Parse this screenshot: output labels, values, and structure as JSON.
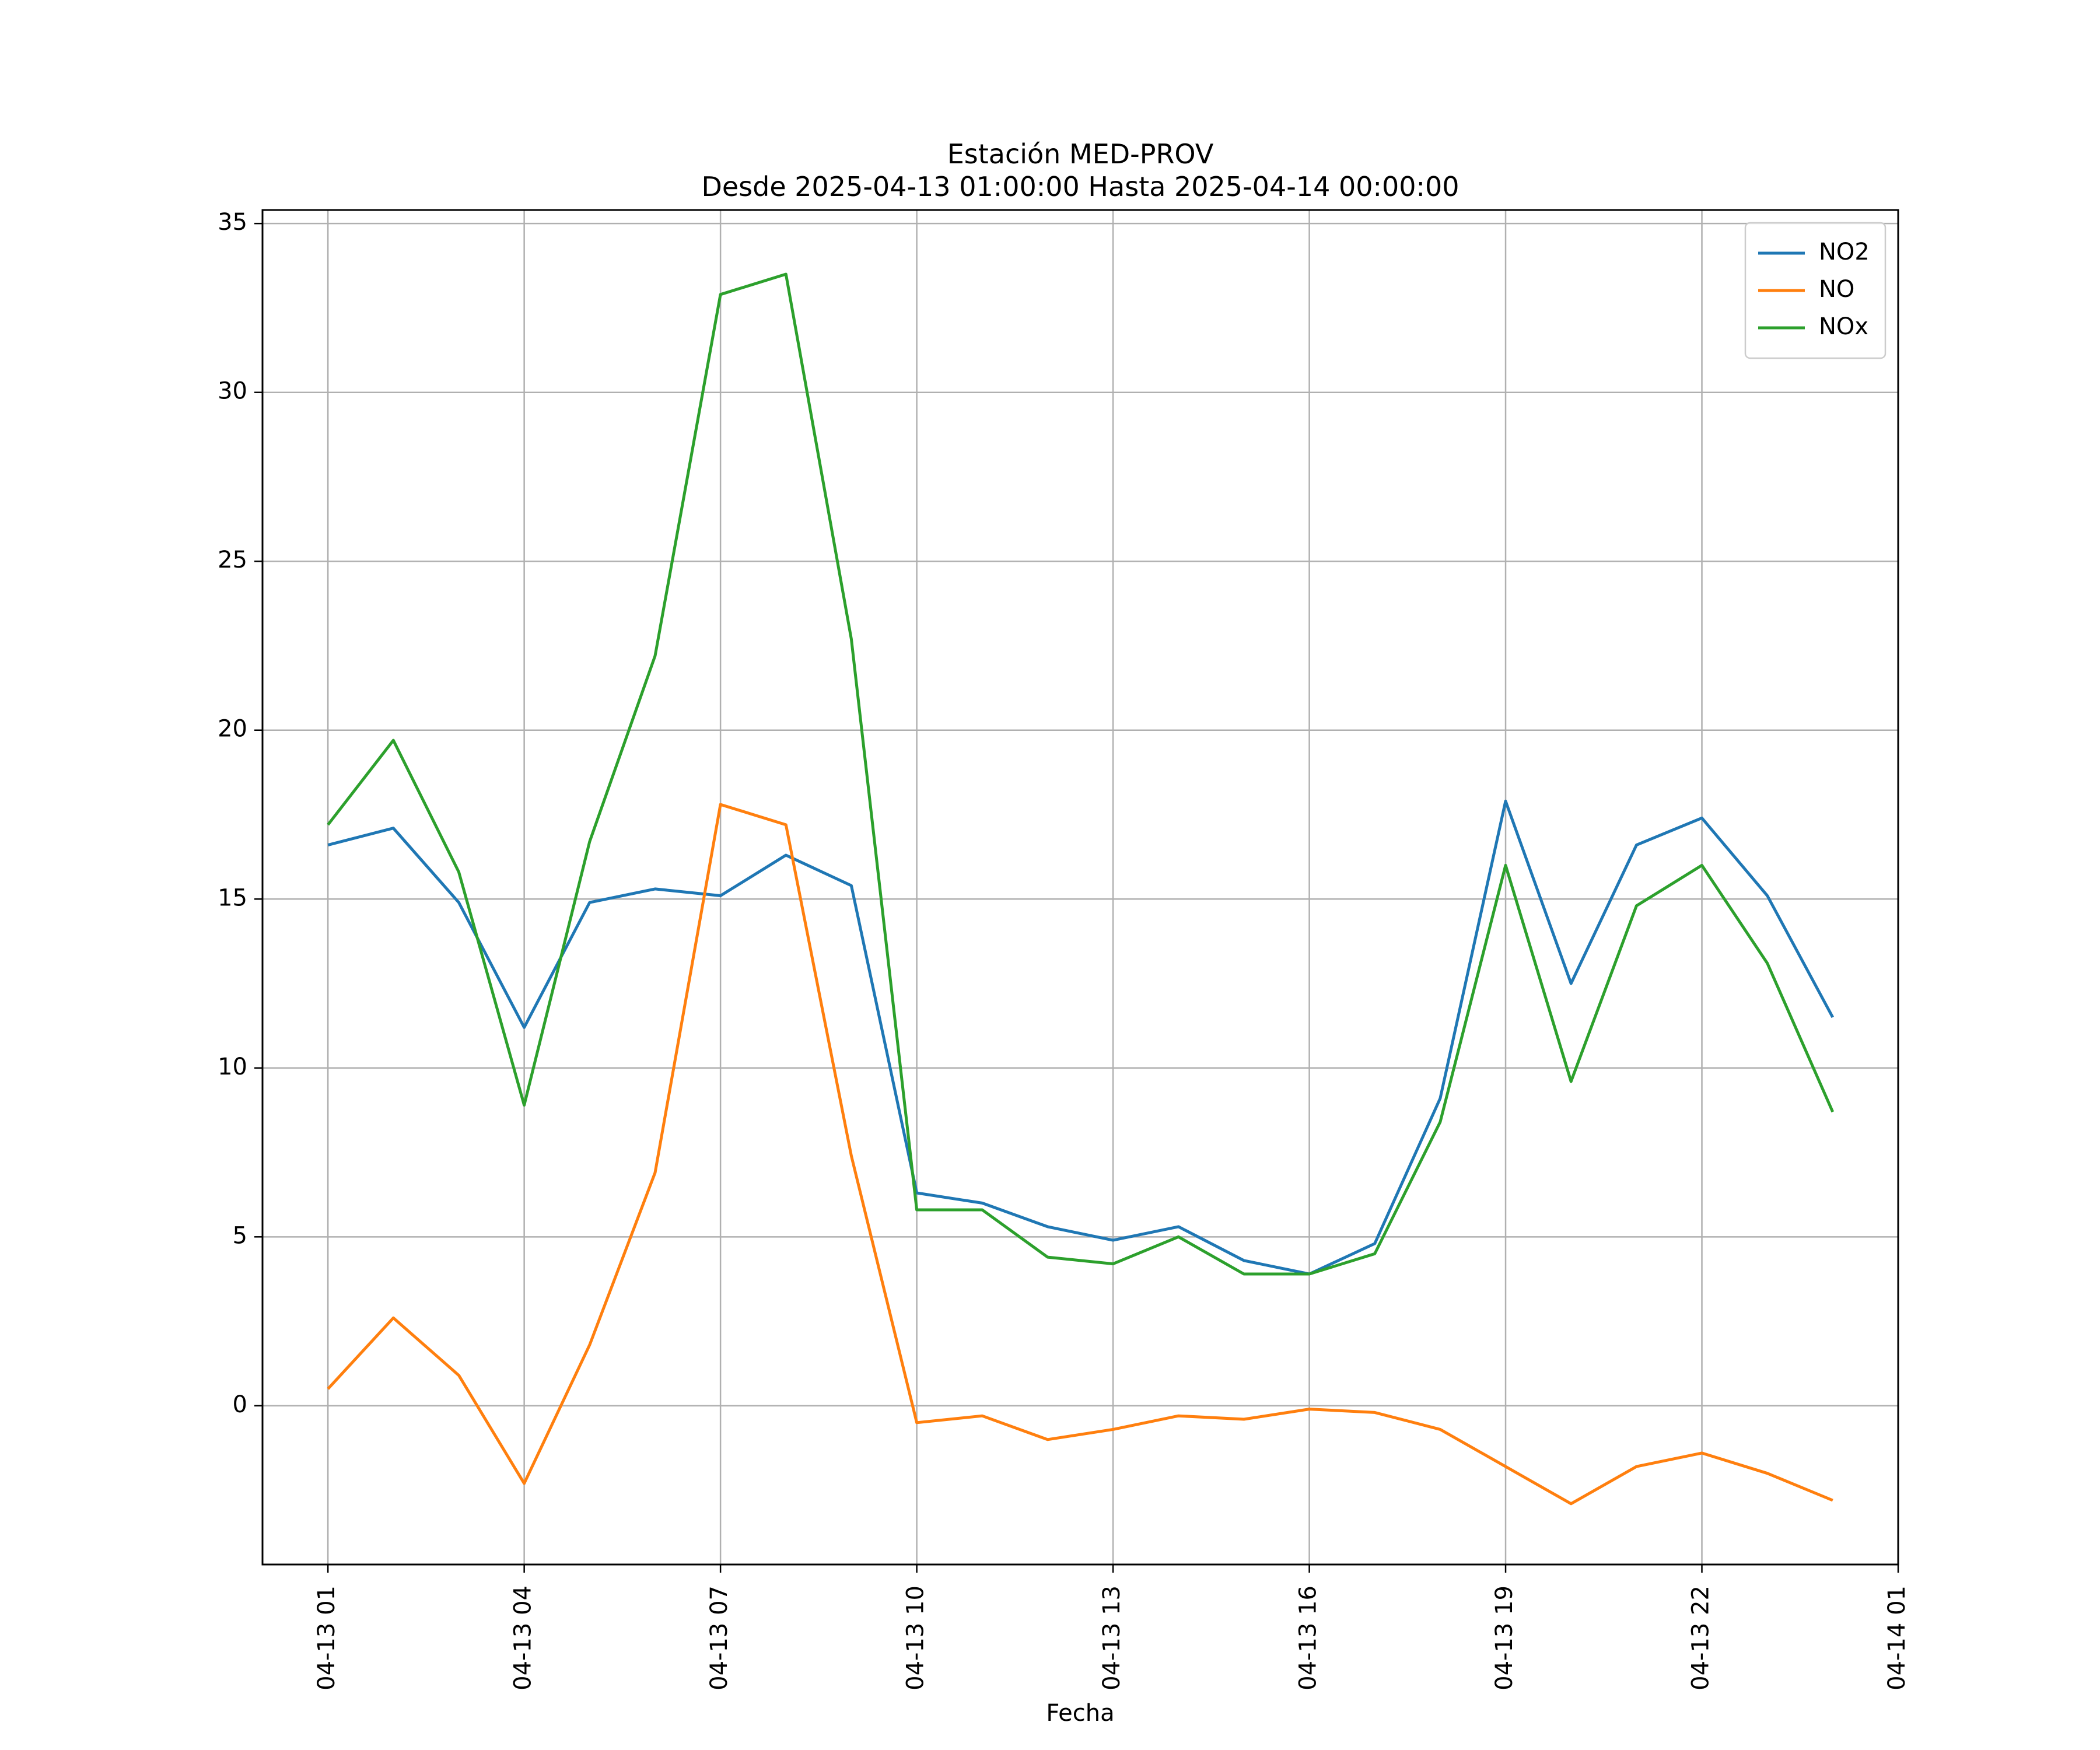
{
  "chart_data": {
    "type": "line",
    "title": "Estación MED-PROV",
    "subtitle": "Desde 2025-04-13 01:00:00 Hasta 2025-04-14 00:00:00",
    "xlabel": "Fecha",
    "ylabel": "",
    "x_unit": "hour",
    "x": [
      "04-13 01",
      "04-13 02",
      "04-13 03",
      "04-13 04",
      "04-13 05",
      "04-13 06",
      "04-13 07",
      "04-13 08",
      "04-13 09",
      "04-13 10",
      "04-13 11",
      "04-13 12",
      "04-13 13",
      "04-13 14",
      "04-13 15",
      "04-13 16",
      "04-13 17",
      "04-13 18",
      "04-13 19",
      "04-13 20",
      "04-13 21",
      "04-13 22",
      "04-13 23",
      "04-14 00"
    ],
    "xlim": [
      "04-13 00",
      "04-14 01"
    ],
    "xticks": [
      "04-13 01",
      "04-13 04",
      "04-13 07",
      "04-13 10",
      "04-13 13",
      "04-13 16",
      "04-13 19",
      "04-13 22",
      "04-14 01"
    ],
    "ylim": [
      -4.7,
      35.4
    ],
    "yticks": [
      0,
      5,
      10,
      15,
      20,
      25,
      30,
      35
    ],
    "grid": true,
    "legend_position": "top-right",
    "series": [
      {
        "name": "NO2",
        "color": "#1f77b4",
        "values": [
          16.6,
          17.1,
          14.9,
          11.2,
          14.9,
          15.3,
          15.1,
          16.3,
          15.4,
          6.3,
          6.0,
          5.3,
          4.9,
          5.3,
          4.3,
          3.9,
          4.8,
          9.1,
          17.9,
          12.5,
          16.6,
          17.4,
          15.1,
          11.5
        ]
      },
      {
        "name": "NO",
        "color": "#ff7f0e",
        "values": [
          0.5,
          2.6,
          0.9,
          -2.3,
          1.8,
          6.9,
          17.8,
          17.2,
          7.4,
          -0.5,
          -0.3,
          -1.0,
          -0.7,
          -0.3,
          -0.4,
          -0.1,
          -0.2,
          -0.7,
          -1.8,
          -2.9,
          -1.8,
          -1.4,
          -2.0,
          -2.8
        ]
      },
      {
        "name": "NOx",
        "color": "#2ca02c",
        "values": [
          17.2,
          19.7,
          15.8,
          8.9,
          16.7,
          22.2,
          32.9,
          33.5,
          22.7,
          5.8,
          5.8,
          4.4,
          4.2,
          5.0,
          3.9,
          3.9,
          4.5,
          8.4,
          16.0,
          9.6,
          14.8,
          16.0,
          13.1,
          8.7
        ]
      }
    ]
  }
}
